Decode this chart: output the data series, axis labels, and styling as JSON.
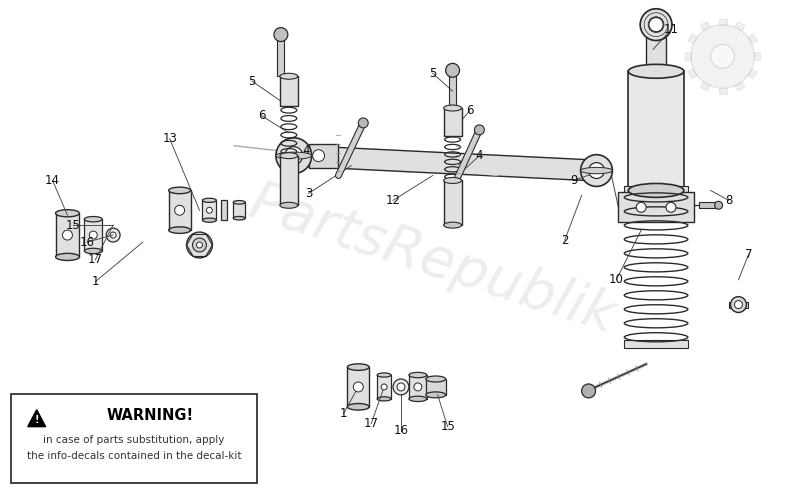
{
  "bg_color": "#ffffff",
  "line_color": "#2a2a2a",
  "label_color": "#111111",
  "warning_text_line1": "in case of parts substitution, apply",
  "warning_text_line2": "the info-decals contained in the decal-kit",
  "watermark": "PartsRepublik",
  "watermark_color": "#cccccc",
  "watermark_alpha": 0.35
}
